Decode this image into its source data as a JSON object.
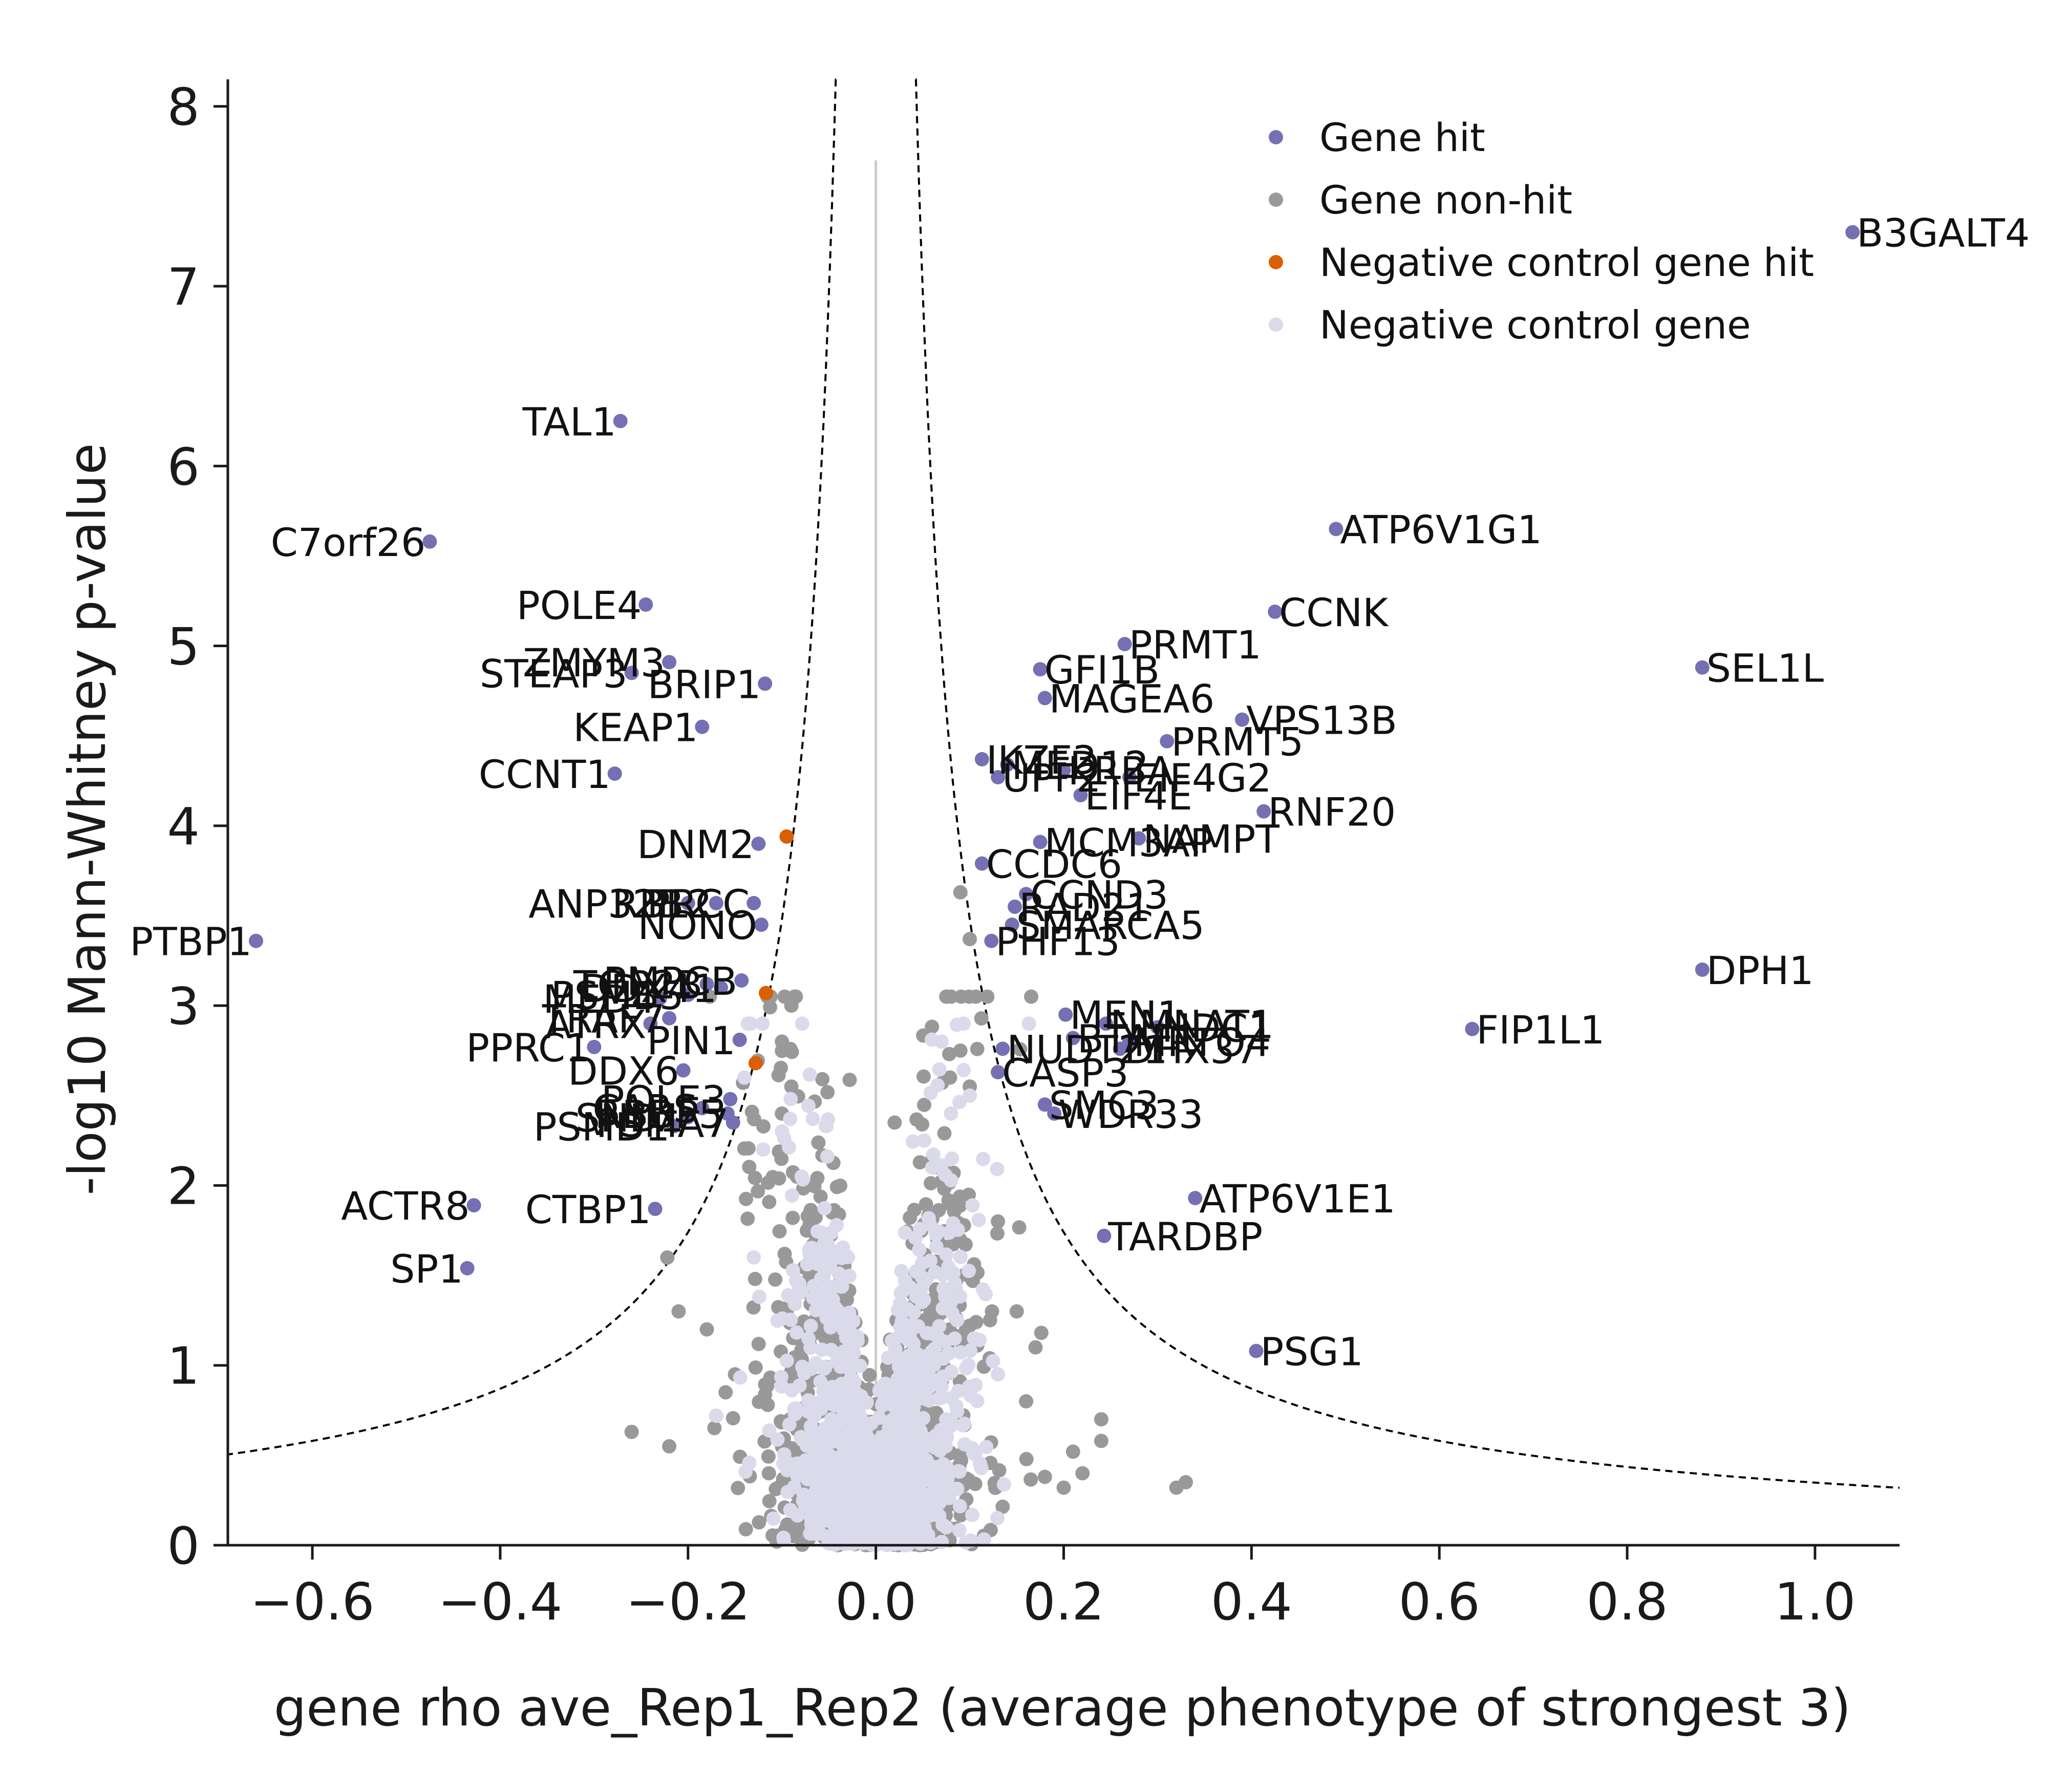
{
  "chart_data": {
    "type": "scatter",
    "title": "",
    "xlabel": "gene rho ave_Rep1_Rep2 (average phenotype of strongest 3)",
    "ylabel": "-log10 Mann-Whitney p-value",
    "xlim": [
      -0.69,
      1.09
    ],
    "ylim": [
      0,
      8.15
    ],
    "x_ticks": [
      -0.6,
      -0.4,
      -0.2,
      0.0,
      0.2,
      0.4,
      0.6,
      0.8,
      1.0
    ],
    "x_tick_labels": [
      "−0.6",
      "−0.4",
      "−0.2",
      "0.0",
      "0.2",
      "0.4",
      "0.6",
      "0.8",
      "1.0"
    ],
    "y_ticks": [
      0,
      1,
      2,
      3,
      4,
      5,
      6,
      7,
      8
    ],
    "y_tick_labels": [
      "0",
      "1",
      "2",
      "3",
      "4",
      "5",
      "6",
      "7",
      "8"
    ],
    "grid": false,
    "legend_position": "top-right",
    "colors": {
      "gene_hit": "#7570b3",
      "gene_non_hit": "#999999",
      "negative_control_hit": "#d95f02",
      "negative_control": "#dadaeb",
      "threshold": "#000000",
      "zero_line": "#cccccc"
    },
    "threshold_curve": {
      "style": "dashed",
      "note_k": 0.035
    },
    "zero_line": {
      "x": 0,
      "y_max": 7.7
    },
    "series": [
      {
        "name": "Gene hit",
        "color": "#7570b3",
        "points": [
          {
            "x": 1.04,
            "y": 7.3,
            "label": "B3GALT4"
          },
          {
            "x": -0.272,
            "y": 6.25,
            "label": "TAL1"
          },
          {
            "x": -0.475,
            "y": 5.58,
            "label": "C7orf26"
          },
          {
            "x": 0.49,
            "y": 5.65,
            "label": "ATP6V1G1"
          },
          {
            "x": -0.245,
            "y": 5.23,
            "label": "POLE4"
          },
          {
            "x": 0.425,
            "y": 5.19,
            "label": "CCNK"
          },
          {
            "x": 0.265,
            "y": 5.01,
            "label": "PRMT1"
          },
          {
            "x": 0.88,
            "y": 4.88,
            "label": "SEL1L"
          },
          {
            "x": -0.22,
            "y": 4.91,
            "label": "ZMYM3"
          },
          {
            "x": -0.26,
            "y": 4.85,
            "label": "STEAP3"
          },
          {
            "x": -0.118,
            "y": 4.79,
            "label": "BRIP1"
          },
          {
            "x": 0.175,
            "y": 4.87,
            "label": "GFI1B"
          },
          {
            "x": 0.18,
            "y": 4.71,
            "label": "MAGEA6"
          },
          {
            "x": -0.185,
            "y": 4.55,
            "label": "KEAP1"
          },
          {
            "x": 0.39,
            "y": 4.59,
            "label": "VPS13B"
          },
          {
            "x": 0.31,
            "y": 4.47,
            "label": "PRMT5"
          },
          {
            "x": 0.113,
            "y": 4.37,
            "label": "IKZF3"
          },
          {
            "x": 0.14,
            "y": 4.34,
            "label": "MED12"
          },
          {
            "x": 0.2,
            "y": 4.31,
            "label": "KRBA"
          },
          {
            "x": -0.278,
            "y": 4.29,
            "label": "CCNT1"
          },
          {
            "x": 0.13,
            "y": 4.27,
            "label": "UPF2"
          },
          {
            "x": 0.27,
            "y": 4.27,
            "label": "EIF4G2"
          },
          {
            "x": 0.218,
            "y": 4.17,
            "label": "EIF4E"
          },
          {
            "x": 0.413,
            "y": 4.08,
            "label": "RNF20"
          },
          {
            "x": -0.125,
            "y": 3.9,
            "label": "DNM2"
          },
          {
            "x": 0.175,
            "y": 3.91,
            "label": "MCM3AP"
          },
          {
            "x": 0.28,
            "y": 3.93,
            "label": "NAMPT"
          },
          {
            "x": 0.113,
            "y": 3.79,
            "label": "CCDC6"
          },
          {
            "x": -0.2,
            "y": 3.57,
            "label": "ANP32B"
          },
          {
            "x": -0.13,
            "y": 3.57,
            "label": "PRCC"
          },
          {
            "x": -0.17,
            "y": 3.57,
            "label": "RBL2"
          },
          {
            "x": 0.16,
            "y": 3.62,
            "label": "CCND3"
          },
          {
            "x": 0.148,
            "y": 3.55,
            "label": "RAD21"
          },
          {
            "x": 0.145,
            "y": 3.45,
            "label": "SMARCA5"
          },
          {
            "x": -0.122,
            "y": 3.45,
            "label": "NONO"
          },
          {
            "x": -0.66,
            "y": 3.36,
            "label": "PTBP1"
          },
          {
            "x": 0.123,
            "y": 3.36,
            "label": "PHF13"
          },
          {
            "x": 0.88,
            "y": 3.2,
            "label": "DPH1"
          },
          {
            "x": -0.143,
            "y": 3.14,
            "label": "PMPCB"
          },
          {
            "x": -0.18,
            "y": 3.12,
            "label": "TOP2B"
          },
          {
            "x": -0.165,
            "y": 3.1,
            "label": "DDX41"
          },
          {
            "x": -0.2,
            "y": 3.06,
            "label": "PSMB5"
          },
          {
            "x": -0.23,
            "y": 3.04,
            "label": "MED4"
          },
          {
            "x": 0.202,
            "y": 2.95,
            "label": "MEN1"
          },
          {
            "x": 0.245,
            "y": 2.9,
            "label": "NMNAT1"
          },
          {
            "x": 0.3,
            "y": 2.88,
            "label": "NDC1"
          },
          {
            "x": -0.22,
            "y": 2.93,
            "label": "TRAF7"
          },
          {
            "x": -0.24,
            "y": 2.9,
            "label": "ATRX"
          },
          {
            "x": 0.635,
            "y": 2.87,
            "label": "FIP1L1"
          },
          {
            "x": -0.145,
            "y": 2.81,
            "label": "PIN1"
          },
          {
            "x": 0.21,
            "y": 2.82,
            "label": "BTAF1"
          },
          {
            "x": 0.27,
            "y": 2.8,
            "label": "MRTO4"
          },
          {
            "x": -0.3,
            "y": 2.77,
            "label": "PPRC1"
          },
          {
            "x": 0.135,
            "y": 2.76,
            "label": "NUDT21"
          },
          {
            "x": 0.26,
            "y": 2.76,
            "label": "DHX37"
          },
          {
            "x": -0.205,
            "y": 2.64,
            "label": "DDX6"
          },
          {
            "x": 0.13,
            "y": 2.63,
            "label": "CASP3"
          },
          {
            "x": -0.155,
            "y": 2.48,
            "label": "POLE3"
          },
          {
            "x": -0.185,
            "y": 2.43,
            "label": "CARS"
          },
          {
            "x": -0.158,
            "y": 2.4,
            "label": "RBBP5"
          },
          {
            "x": -0.2,
            "y": 2.38,
            "label": "SND1"
          },
          {
            "x": 0.18,
            "y": 2.45,
            "label": "SMC3"
          },
          {
            "x": 0.19,
            "y": 2.4,
            "label": "WDR33"
          },
          {
            "x": -0.152,
            "y": 2.35,
            "label": "PSMA7"
          },
          {
            "x": -0.215,
            "y": 2.33,
            "label": "PSMD1"
          },
          {
            "x": 0.34,
            "y": 1.93,
            "label": "ATP6V1E1"
          },
          {
            "x": -0.428,
            "y": 1.89,
            "label": "ACTR8"
          },
          {
            "x": -0.235,
            "y": 1.87,
            "label": "CTBP1"
          },
          {
            "x": 0.243,
            "y": 1.72,
            "label": "TARDBP"
          },
          {
            "x": -0.435,
            "y": 1.54,
            "label": "SP1"
          },
          {
            "x": 0.405,
            "y": 1.08,
            "label": "PSG1"
          }
        ]
      },
      {
        "name": "Gene non-hit",
        "color": "#999999",
        "points": "generated"
      },
      {
        "name": "Negative control gene hit",
        "color": "#d95f02",
        "points": [
          {
            "x": -0.095,
            "y": 3.94
          },
          {
            "x": -0.117,
            "y": 3.07
          },
          {
            "x": -0.128,
            "y": 2.68
          }
        ]
      },
      {
        "name": "Negative control gene",
        "color": "#dadaeb",
        "points": "generated"
      }
    ]
  }
}
